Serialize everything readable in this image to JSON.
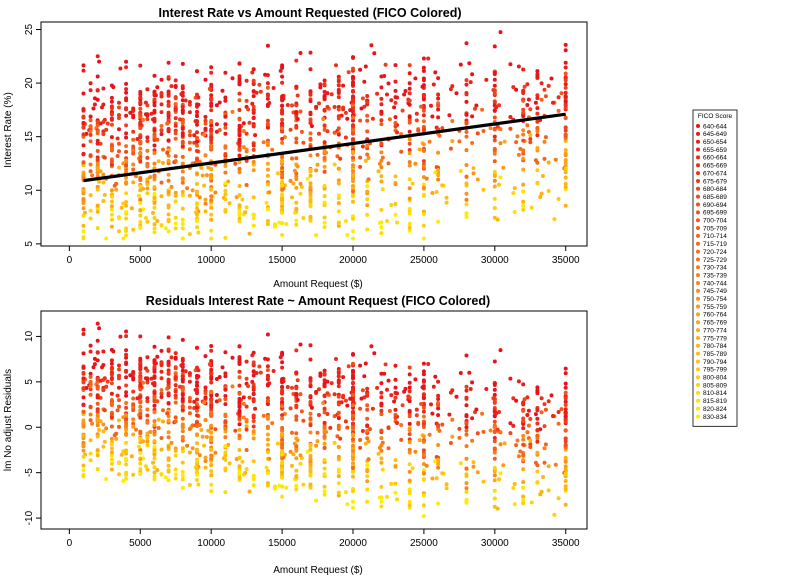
{
  "legend": {
    "title": "FICO Score",
    "entries": [
      "640-644",
      "645-649",
      "650-654",
      "655-659",
      "660-664",
      "665-669",
      "670-674",
      "675-679",
      "680-684",
      "685-689",
      "690-694",
      "695-699",
      "700-704",
      "705-709",
      "710-714",
      "715-719",
      "720-724",
      "725-729",
      "730-734",
      "735-739",
      "740-744",
      "745-749",
      "750-754",
      "755-759",
      "760-764",
      "765-769",
      "770-774",
      "775-779",
      "780-784",
      "785-789",
      "790-794",
      "795-799",
      "800-804",
      "805-809",
      "810-814",
      "815-819",
      "820-824",
      "830-834"
    ],
    "colors": [
      "#e8121b",
      "#e8171b",
      "#e91c1b",
      "#ea221b",
      "#eb281b",
      "#ec2d1b",
      "#ed331b",
      "#ee391b",
      "#ef3f1b",
      "#f0451b",
      "#f14b1b",
      "#f2511b",
      "#f3571b",
      "#f45d1b",
      "#f5631b",
      "#f6691b",
      "#f76f1b",
      "#f8751b",
      "#f87b1a",
      "#f9811a",
      "#f9871a",
      "#fa8d19",
      "#fa9318",
      "#fb9917",
      "#fb9f16",
      "#fca515",
      "#fcab14",
      "#fdb113",
      "#fdb711",
      "#fdbd10",
      "#fec30e",
      "#fec90c",
      "#fecf0a",
      "#ffd508",
      "#ffdb06",
      "#ffe104",
      "#ffe702",
      "#ffed00"
    ]
  },
  "chart_data": [
    {
      "type": "scatter",
      "title": "Interest Rate vs Amount Requested (FICO Colored)",
      "xlabel": "Amount Request ($)",
      "ylabel": "Interest Rate (%)",
      "xlim": [
        -2000,
        36500
      ],
      "ylim": [
        4.8,
        25.7
      ],
      "xticks": [
        0,
        5000,
        10000,
        15000,
        20000,
        25000,
        30000,
        35000
      ],
      "yticks": [
        5,
        10,
        15,
        20,
        25
      ],
      "regression_line": {
        "x": [
          1000,
          35000
        ],
        "y": [
          10.9,
          17.1
        ],
        "color": "#000000"
      },
      "color_scale": "FICO Score (red = low, yellow = high)",
      "x_amount_levels": [
        1000,
        1500,
        2000,
        2400,
        3000,
        3500,
        4000,
        4500,
        5000,
        5500,
        6000,
        6500,
        7000,
        7500,
        8000,
        8500,
        9000,
        9600,
        10000,
        11000,
        12000,
        12500,
        13000,
        14000,
        15000,
        16000,
        17000,
        18000,
        19000,
        20000,
        21000,
        22000,
        23000,
        24000,
        25000,
        26000,
        28000,
        30000,
        32000,
        33000,
        35000
      ],
      "y_range_by_fico": "rates roughly from 5.5 to 25; lower FICO bands concentrated 13-25, higher FICO bands 5.5-10"
    },
    {
      "type": "scatter",
      "title": "Residuals Interest Rate ~ Amount Request (FICO Colored)",
      "xlabel": "Amount Request ($)",
      "ylabel": "lm No adjust Residuals",
      "xlim": [
        -2000,
        36500
      ],
      "ylim": [
        -11.2,
        12.8
      ],
      "xticks": [
        0,
        5000,
        10000,
        15000,
        20000,
        25000,
        30000,
        35000
      ],
      "yticks": [
        -10,
        -5,
        0,
        5,
        10
      ],
      "color_scale": "FICO Score (red = low, yellow = high)",
      "y_range_by_fico": "residuals roughly from -10.5 to 12; lower FICO bands positive, higher FICO bands negative"
    }
  ]
}
